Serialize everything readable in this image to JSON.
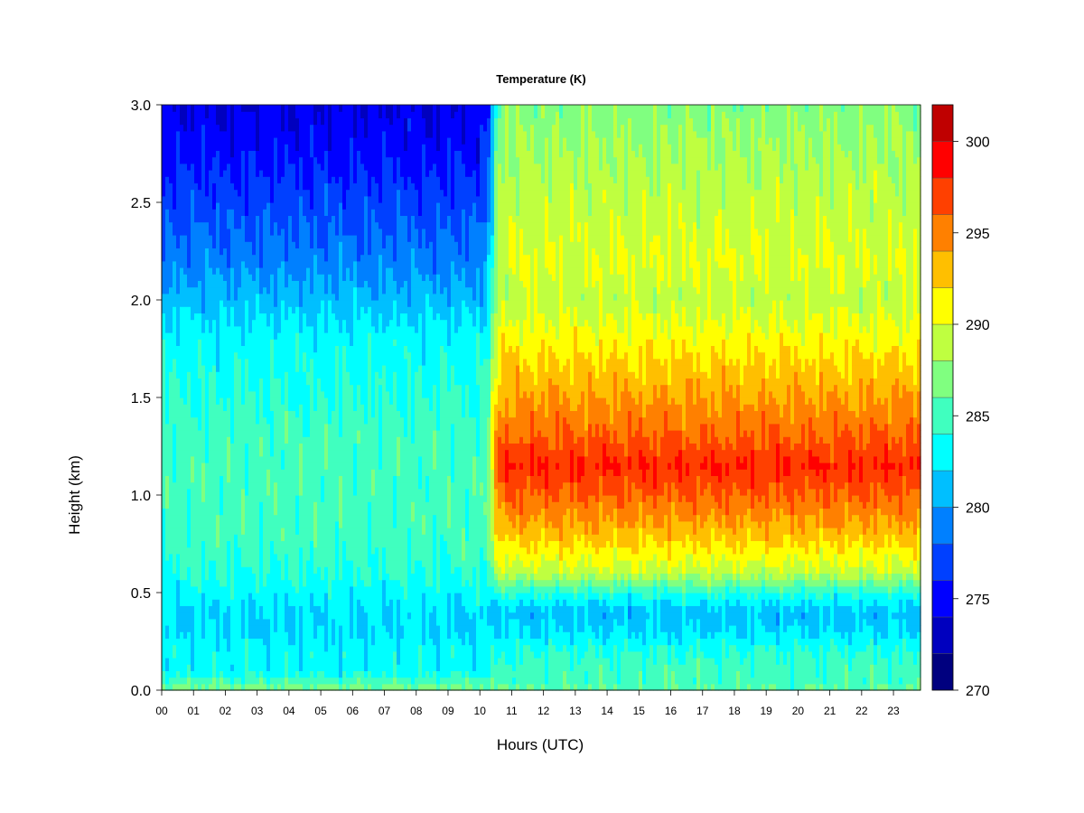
{
  "chart_data": {
    "type": "heatmap",
    "title": "Temperature (K)",
    "xlabel": "Hours (UTC)",
    "ylabel": "Height (km)",
    "x_ticks": [
      "00",
      "01",
      "02",
      "03",
      "04",
      "05",
      "06",
      "07",
      "08",
      "09",
      "10",
      "11",
      "12",
      "13",
      "14",
      "15",
      "16",
      "17",
      "18",
      "19",
      "20",
      "21",
      "22",
      "23"
    ],
    "y_ticks": [
      "0.0",
      "0.5",
      "1.0",
      "1.5",
      "2.0",
      "2.5",
      "3.0"
    ],
    "xlim": [
      0,
      23.85
    ],
    "ylim": [
      0,
      3.0
    ],
    "colorbar": {
      "ticks": [
        "270",
        "275",
        "280",
        "285",
        "290",
        "295",
        "300"
      ],
      "range": [
        270,
        302
      ],
      "levels": [
        270,
        272,
        274,
        276,
        278,
        280,
        282,
        284,
        286,
        288,
        290,
        292,
        294,
        296,
        298,
        300,
        302
      ],
      "colors": [
        "#00007f",
        "#0000bf",
        "#0000ff",
        "#0040ff",
        "#0080ff",
        "#00bfff",
        "#00ffff",
        "#40ffbf",
        "#80ff80",
        "#bfff40",
        "#ffff00",
        "#ffbf00",
        "#ff8000",
        "#ff4000",
        "#ff0000",
        "#bf0000",
        "#7f0000"
      ]
    },
    "profile_heights_km": [
      0.0,
      0.05,
      0.1,
      0.2,
      0.3,
      0.4,
      0.5,
      0.6,
      0.8,
      1.0,
      1.15,
      1.3,
      1.5,
      1.8,
      2.0,
      2.2,
      2.5,
      2.8,
      3.0
    ],
    "profile_before_1030_utc": [
      287,
      285,
      283,
      283,
      282,
      282,
      283,
      284,
      285,
      285,
      285,
      285,
      284,
      283,
      281,
      279,
      277,
      275,
      274
    ],
    "profile_after_1030_utc": [
      286,
      285,
      285,
      284,
      282,
      281,
      284,
      289,
      293,
      296,
      298,
      296,
      294,
      291,
      289,
      290,
      289,
      288,
      287
    ],
    "transition_hour": 10.4
  }
}
